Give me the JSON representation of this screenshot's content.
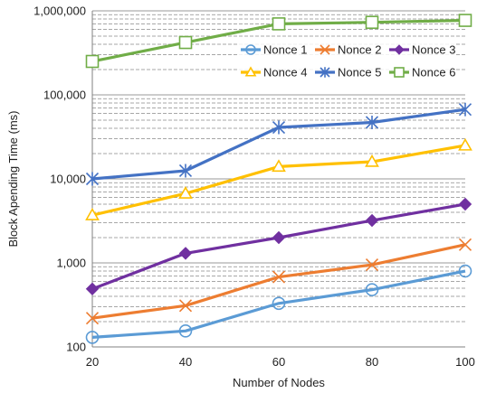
{
  "chart_data": {
    "type": "line",
    "title": "",
    "xlabel": "Number of Nodes",
    "ylabel": "Block Apending Time (ms)",
    "x": [
      20,
      40,
      60,
      80,
      100
    ],
    "x_tick_labels": [
      "20",
      "40",
      "60",
      "80",
      "100"
    ],
    "xlim": [
      20,
      100
    ],
    "y_scale": "log",
    "ylim": [
      100,
      1000000
    ],
    "y_ticks": [
      100,
      1000,
      10000,
      100000,
      1000000
    ],
    "y_tick_labels": [
      "100",
      "1,000",
      "10,000",
      "100,000",
      "1,000,000"
    ],
    "grid": "horizontal major and minor dashed",
    "legend_position": "upper-right",
    "series": [
      {
        "name": "Nonce 1",
        "values": [
          130,
          155,
          330,
          480,
          800
        ],
        "color": "#5b9bd5",
        "marker": "circle"
      },
      {
        "name": "Nonce 2",
        "values": [
          220,
          310,
          680,
          950,
          1650
        ],
        "color": "#ed7d31",
        "marker": "x"
      },
      {
        "name": "Nonce 3",
        "values": [
          490,
          1300,
          2000,
          3200,
          5000
        ],
        "color": "#7030a0",
        "marker": "diamond"
      },
      {
        "name": "Nonce 4",
        "values": [
          3700,
          6700,
          14000,
          16000,
          25000
        ],
        "color": "#ffc000",
        "marker": "triangle"
      },
      {
        "name": "Nonce 5",
        "values": [
          10000,
          12500,
          41000,
          47000,
          67000
        ],
        "color": "#4472c4",
        "marker": "star"
      },
      {
        "name": "Nonce 6",
        "values": [
          250000,
          420000,
          700000,
          730000,
          770000
        ],
        "color": "#70ad47",
        "marker": "square"
      }
    ]
  }
}
